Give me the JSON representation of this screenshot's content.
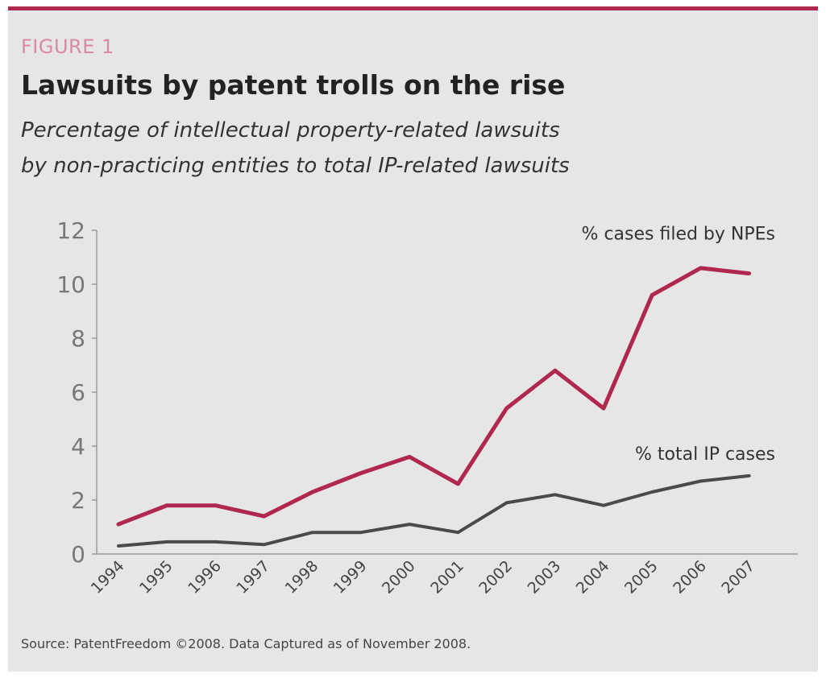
{
  "figure_label": "FIGURE 1",
  "title": "Lawsuits by patent trolls on the rise",
  "subtitle_lines": [
    "Percentage of intellectual property-related lawsuits",
    "by non-practicing entities to total IP-related lawsuits"
  ],
  "source": "Source: PatentFreedom ©2008. Data Captured as of November 2008.",
  "colors": {
    "accent": "#b0284f",
    "npe_line": "#b0284f",
    "total_line": "#4a4a4a",
    "background": "#e6e6e6"
  },
  "chart_data": {
    "type": "line",
    "title": "Lawsuits by patent trolls on the rise",
    "xlabel": "",
    "ylabel": "",
    "ylim": [
      0,
      12
    ],
    "yticks": [
      0,
      2,
      4,
      6,
      8,
      10,
      12
    ],
    "categories": [
      "1994",
      "1995",
      "1996",
      "1997",
      "1998",
      "1999",
      "2000",
      "2001",
      "2002",
      "2003",
      "2004",
      "2005",
      "2006",
      "2007"
    ],
    "grid": false,
    "series": [
      {
        "name": "% cases filed by NPEs",
        "values": [
          1.1,
          1.8,
          1.8,
          1.4,
          2.3,
          3.0,
          3.6,
          2.6,
          5.4,
          6.8,
          5.4,
          9.6,
          10.6,
          10.4
        ]
      },
      {
        "name": "% total IP cases",
        "values": [
          0.3,
          0.45,
          0.45,
          0.35,
          0.8,
          0.8,
          1.1,
          0.8,
          1.9,
          2.2,
          1.8,
          2.3,
          2.7,
          2.9
        ]
      }
    ]
  }
}
